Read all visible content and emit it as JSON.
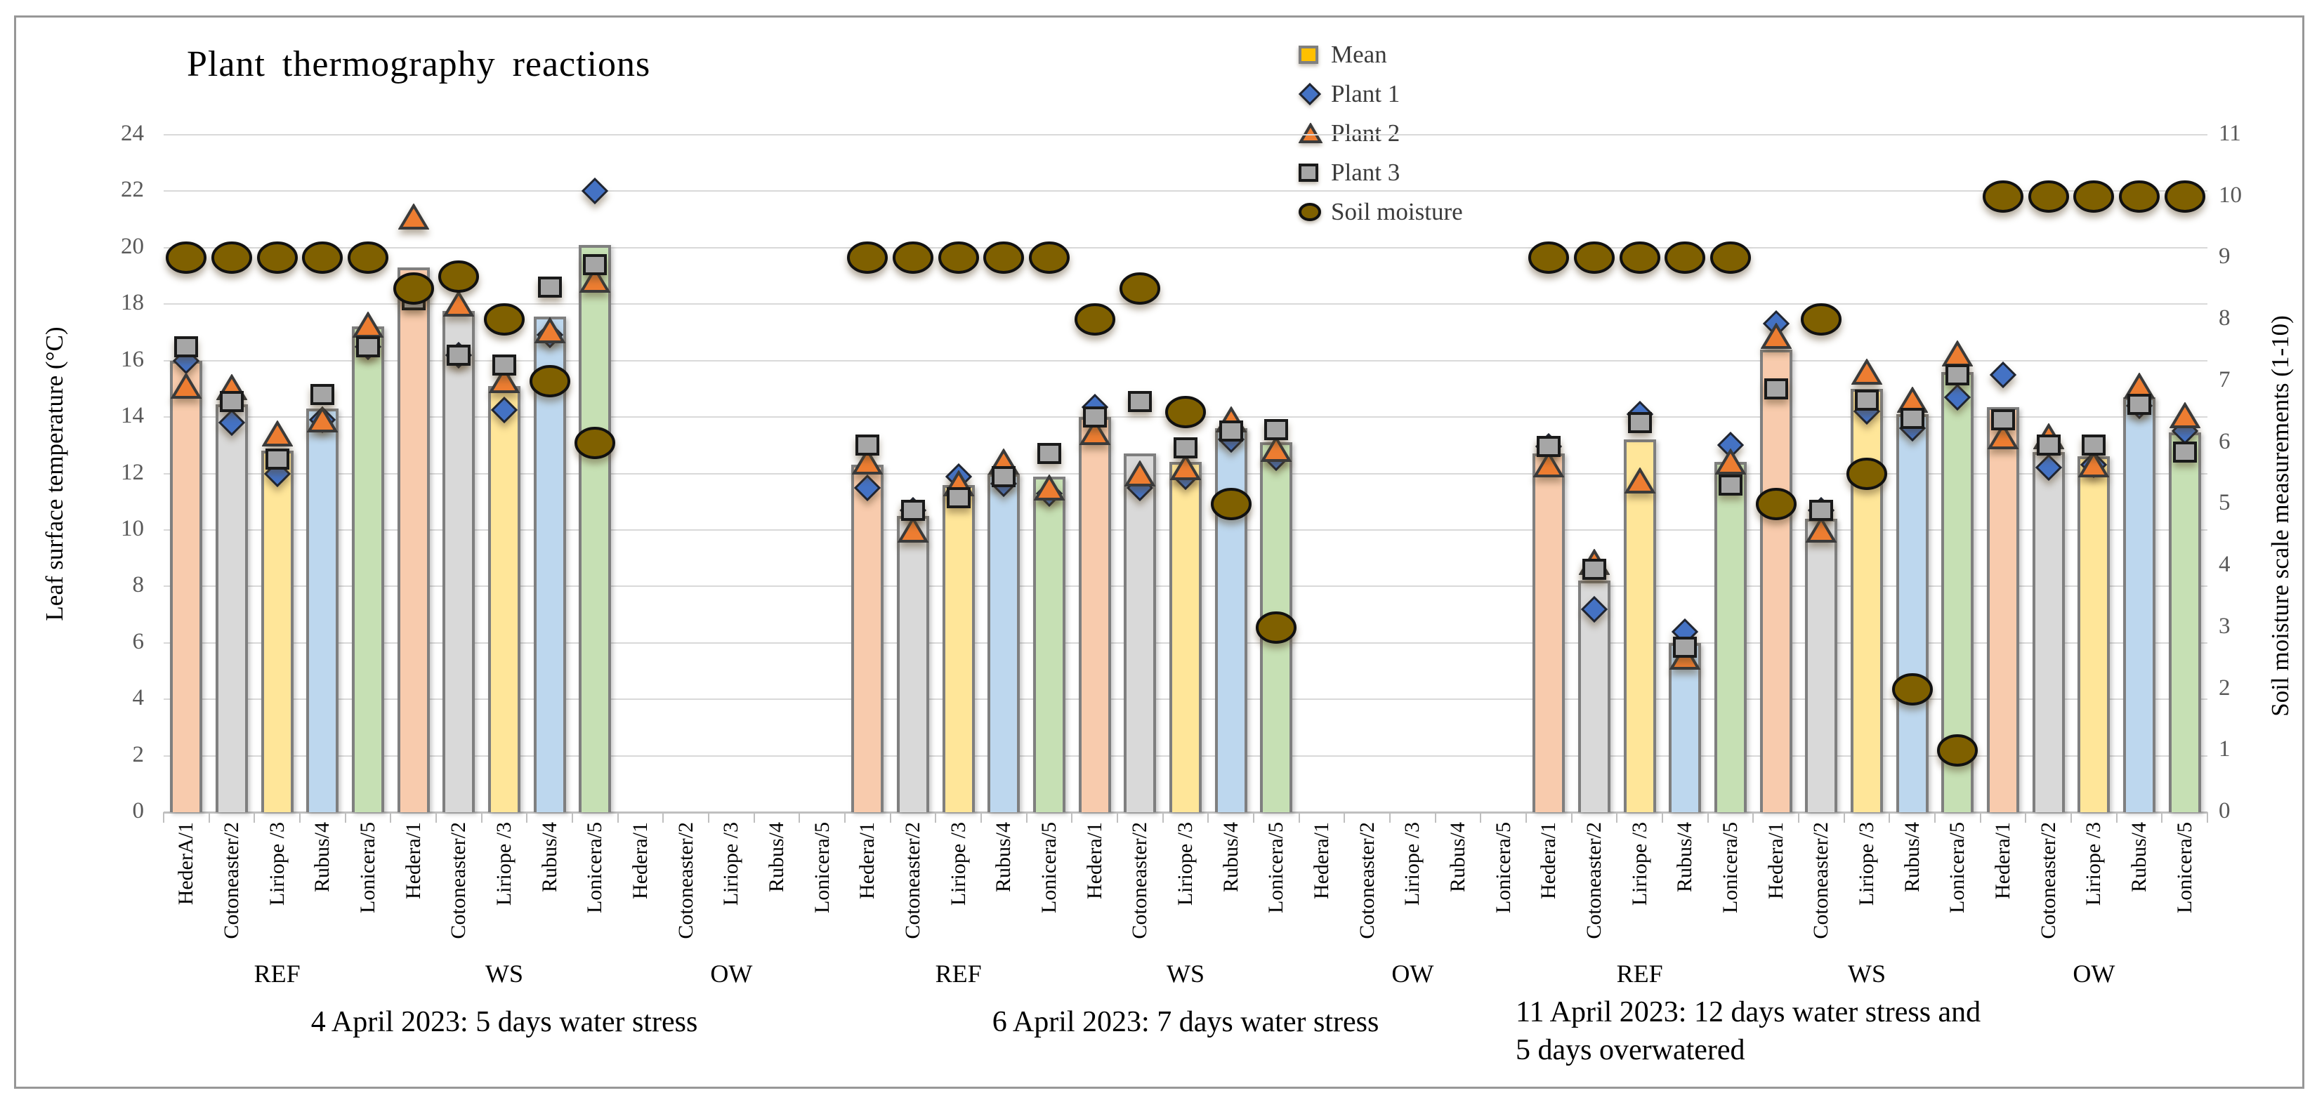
{
  "chart_data": {
    "type": "bar",
    "subtype": "combo bar + scatter markers, dual axis",
    "title": "Plant thermography reactions",
    "left_axis": {
      "title": "Leaf surface temperature (°C)",
      "min": 0,
      "max": 24,
      "tick_step": 2,
      "ticks": [
        0,
        2,
        4,
        6,
        8,
        10,
        12,
        14,
        16,
        18,
        20,
        22,
        24
      ]
    },
    "right_axis": {
      "title": "Soil moisture scale measurements (1-10)",
      "min": 0,
      "max": 11,
      "tick_step": 1,
      "ticks": [
        0,
        1,
        2,
        3,
        4,
        5,
        6,
        7,
        8,
        9,
        10,
        11
      ]
    },
    "legend": [
      {
        "label": "Mean",
        "marker": "square",
        "color": "#FFC000",
        "stroke": "#7f7f7f"
      },
      {
        "label": "Plant 1",
        "marker": "diamond",
        "color": "#4472C4",
        "stroke": "#1f2430"
      },
      {
        "label": "Plant 2",
        "marker": "triangle",
        "color": "#ED7D31",
        "stroke": "#3a3a3a"
      },
      {
        "label": "Plant 3",
        "marker": "square",
        "color": "#A6A6A6",
        "stroke": "#1a1a1a"
      },
      {
        "label": "Soil moisture",
        "marker": "circle",
        "color": "#7F6000",
        "stroke": "#111111"
      }
    ],
    "species_colors": {
      "Hedera": "#F8CBAD",
      "Cotoneaster": "#D9D9D9",
      "Liriope": "#FFE699",
      "Rubus": "#BDD7EE",
      "Lonicera": "#C6E0B4"
    },
    "style_colors": {
      "bar_border": "#7f7f7f",
      "gridline": "#d9d9d9",
      "axis_line": "#bfbfbf",
      "tick_text": "#595959",
      "frame_border": "#979797"
    },
    "groups": [
      {
        "caption_lines": [
          "4 April 2023: 5 days water stress"
        ],
        "sections": [
          {
            "name": "REF",
            "points": [
              {
                "label": "HederA/1",
                "species": "Hedera",
                "mean": 16.0,
                "plant1": 16.0,
                "plant2": 15.1,
                "plant3": 16.5,
                "soil": 9
              },
              {
                "label": "Cotoneaster/2",
                "species": "Cotoneaster",
                "mean": 14.45,
                "plant1": 13.8,
                "plant2": 15.05,
                "plant3": 14.55,
                "soil": 9
              },
              {
                "label": "Liriope /3",
                "species": "Liriope",
                "mean": 12.8,
                "plant1": 12.0,
                "plant2": 13.4,
                "plant3": 12.5,
                "soil": 9
              },
              {
                "label": "Rubus/4",
                "species": "Rubus",
                "mean": 14.3,
                "plant1": 13.9,
                "plant2": 13.9,
                "plant3": 14.8,
                "soil": 9
              },
              {
                "label": "Lonicera/5",
                "species": "Lonicera",
                "mean": 17.2,
                "plant1": 16.5,
                "plant2": 17.25,
                "plant3": 16.5,
                "soil": 9
              }
            ]
          },
          {
            "name": "WS",
            "points": [
              {
                "label": "Hedera/1",
                "species": "Hedera",
                "mean": 19.3,
                "plant1": 18.6,
                "plant2": 21.1,
                "plant3": 18.15,
                "soil": 8.5
              },
              {
                "label": "Cotoneaster/2",
                "species": "Cotoneaster",
                "mean": 17.75,
                "plant1": 16.2,
                "plant2": 18.0,
                "plant3": 16.2,
                "soil": 8.7
              },
              {
                "label": "Liriope /3",
                "species": "Liriope",
                "mean": 15.1,
                "plant1": 14.25,
                "plant2": 15.3,
                "plant3": 15.85,
                "soil": 8
              },
              {
                "label": "Rubus/4",
                "species": "Rubus",
                "mean": 17.55,
                "plant1": 16.9,
                "plant2": 17.05,
                "plant3": 18.6,
                "soil": 7
              },
              {
                "label": "Lonicera/5",
                "species": "Lonicera",
                "mean": 20.1,
                "plant1": 22.0,
                "plant2": 18.85,
                "plant3": 19.4,
                "soil": 6
              }
            ]
          },
          {
            "name": "OW",
            "points": [
              {
                "label": "Hedera/1",
                "species": "Hedera",
                "mean": null,
                "plant1": null,
                "plant2": null,
                "plant3": null,
                "soil": null
              },
              {
                "label": "Cotoneaster/2",
                "species": "Cotoneaster",
                "mean": null,
                "plant1": null,
                "plant2": null,
                "plant3": null,
                "soil": null
              },
              {
                "label": "Liriope /3",
                "species": "Liriope",
                "mean": null,
                "plant1": null,
                "plant2": null,
                "plant3": null,
                "soil": null
              },
              {
                "label": "Rubus/4",
                "species": "Rubus",
                "mean": null,
                "plant1": null,
                "plant2": null,
                "plant3": null,
                "soil": null
              },
              {
                "label": "Lonicera/5",
                "species": "Lonicera",
                "mean": null,
                "plant1": null,
                "plant2": null,
                "plant3": null,
                "soil": null
              }
            ]
          }
        ]
      },
      {
        "caption_lines": [
          "6 April 2023: 7 days water stress"
        ],
        "sections": [
          {
            "name": "REF",
            "points": [
              {
                "label": "Hedera/1",
                "species": "Hedera",
                "mean": 12.3,
                "plant1": 11.5,
                "plant2": 12.4,
                "plant3": 13.0,
                "soil": 9
              },
              {
                "label": "Cotoneaster/2",
                "species": "Cotoneaster",
                "mean": 10.5,
                "plant1": 10.7,
                "plant2": 10.0,
                "plant3": 10.7,
                "soil": 9
              },
              {
                "label": "Liriope /3",
                "species": "Liriope",
                "mean": 11.6,
                "plant1": 11.9,
                "plant2": 11.65,
                "plant3": 11.15,
                "soil": 9
              },
              {
                "label": "Rubus/4",
                "species": "Rubus",
                "mean": 12.0,
                "plant1": 11.65,
                "plant2": 12.4,
                "plant3": 11.9,
                "soil": 9
              },
              {
                "label": "Lonicera/5",
                "species": "Lonicera",
                "mean": 11.9,
                "plant1": 11.3,
                "plant2": 11.5,
                "plant3": 12.7,
                "soil": 9
              }
            ]
          },
          {
            "name": "WS",
            "points": [
              {
                "label": "Hedera/1",
                "species": "Hedera",
                "mean": 14.0,
                "plant1": 14.35,
                "plant2": 13.45,
                "plant3": 14.0,
                "soil": 8
              },
              {
                "label": "Cotoneaster/2",
                "species": "Cotoneaster",
                "mean": 12.7,
                "plant1": 11.5,
                "plant2": 12.0,
                "plant3": 14.55,
                "soil": 8.5
              },
              {
                "label": "Liriope /3",
                "species": "Liriope",
                "mean": 12.4,
                "plant1": 11.9,
                "plant2": 12.2,
                "plant3": 12.9,
                "soil": 6.5
              },
              {
                "label": "Rubus/4",
                "species": "Rubus",
                "mean": 13.6,
                "plant1": 13.2,
                "plant2": 13.9,
                "plant3": 13.5,
                "soil": 5
              },
              {
                "label": "Lonicera/5",
                "species": "Lonicera",
                "mean": 13.1,
                "plant1": 12.55,
                "plant2": 12.85,
                "plant3": 13.55,
                "soil": 3
              }
            ]
          },
          {
            "name": "OW",
            "points": [
              {
                "label": "Hedera/1",
                "species": "Hedera",
                "mean": null,
                "plant1": null,
                "plant2": null,
                "plant3": null,
                "soil": null
              },
              {
                "label": "Cotoneaster/2",
                "species": "Cotoneaster",
                "mean": null,
                "plant1": null,
                "plant2": null,
                "plant3": null,
                "soil": null
              },
              {
                "label": "Liriope /3",
                "species": "Liriope",
                "mean": null,
                "plant1": null,
                "plant2": null,
                "plant3": null,
                "soil": null
              },
              {
                "label": "Rubus/4",
                "species": "Rubus",
                "mean": null,
                "plant1": null,
                "plant2": null,
                "plant3": null,
                "soil": null
              },
              {
                "label": "Lonicera/5",
                "species": "Lonicera",
                "mean": null,
                "plant1": null,
                "plant2": null,
                "plant3": null,
                "soil": null
              }
            ]
          }
        ]
      },
      {
        "caption_lines": [
          "11 April 2023: 12 days water stress and",
          "5 days overwatered"
        ],
        "sections": [
          {
            "name": "REF",
            "points": [
              {
                "label": "Hedera/1",
                "species": "Hedera",
                "mean": 12.7,
                "plant1": 12.95,
                "plant2": 12.3,
                "plant3": 12.95,
                "soil": 9
              },
              {
                "label": "Cotoneaster/2",
                "species": "Cotoneaster",
                "mean": 8.2,
                "plant1": 7.2,
                "plant2": 8.85,
                "plant3": 8.6,
                "soil": 9
              },
              {
                "label": "Liriope /3",
                "species": "Liriope",
                "mean": 13.2,
                "plant1": 14.1,
                "plant2": 11.75,
                "plant3": 13.8,
                "soil": 9
              },
              {
                "label": "Rubus/4",
                "species": "Rubus",
                "mean": 6.0,
                "plant1": 6.4,
                "plant2": 5.5,
                "plant3": 5.85,
                "soil": 9
              },
              {
                "label": "Lonicera/5",
                "species": "Lonicera",
                "mean": 12.4,
                "plant1": 13.0,
                "plant2": 12.4,
                "plant3": 11.6,
                "soil": 9
              }
            ]
          },
          {
            "name": "WS",
            "points": [
              {
                "label": "Hedera/1",
                "species": "Hedera",
                "mean": 16.4,
                "plant1": 17.3,
                "plant2": 16.85,
                "plant3": 15.0,
                "soil": 5
              },
              {
                "label": "Cotoneaster/2",
                "species": "Cotoneaster",
                "mean": 10.4,
                "plant1": 10.7,
                "plant2": 10.0,
                "plant3": 10.7,
                "soil": 8
              },
              {
                "label": "Liriope /3",
                "species": "Liriope",
                "mean": 15.0,
                "plant1": 14.2,
                "plant2": 15.6,
                "plant3": 14.6,
                "soil": 5.5
              },
              {
                "label": "Rubus/4",
                "species": "Rubus",
                "mean": 14.1,
                "plant1": 13.6,
                "plant2": 14.6,
                "plant3": 13.95,
                "soil": 2
              },
              {
                "label": "Lonicera/5",
                "species": "Lonicera",
                "mean": 15.6,
                "plant1": 14.7,
                "plant2": 16.25,
                "plant3": 15.5,
                "soil": 1
              }
            ]
          },
          {
            "name": "OW",
            "points": [
              {
                "label": "Hedera/1",
                "species": "Hedera",
                "mean": 14.35,
                "plant1": 15.5,
                "plant2": 13.3,
                "plant3": 13.9,
                "soil": 10
              },
              {
                "label": "Cotoneaster/2",
                "species": "Cotoneaster",
                "mean": 12.75,
                "plant1": 12.2,
                "plant2": 13.3,
                "plant3": 13.0,
                "soil": 10
              },
              {
                "label": "Liriope /3",
                "species": "Liriope",
                "mean": 12.6,
                "plant1": 12.3,
                "plant2": 12.3,
                "plant3": 13.0,
                "soil": 10
              },
              {
                "label": "Rubus/4",
                "species": "Rubus",
                "mean": 14.7,
                "plant1": 14.4,
                "plant2": 15.1,
                "plant3": 14.45,
                "soil": 10
              },
              {
                "label": "Lonicera/5",
                "species": "Lonicera",
                "mean": 13.45,
                "plant1": 13.5,
                "plant2": 14.05,
                "plant3": 12.75,
                "soil": 10
              }
            ]
          }
        ]
      }
    ]
  }
}
